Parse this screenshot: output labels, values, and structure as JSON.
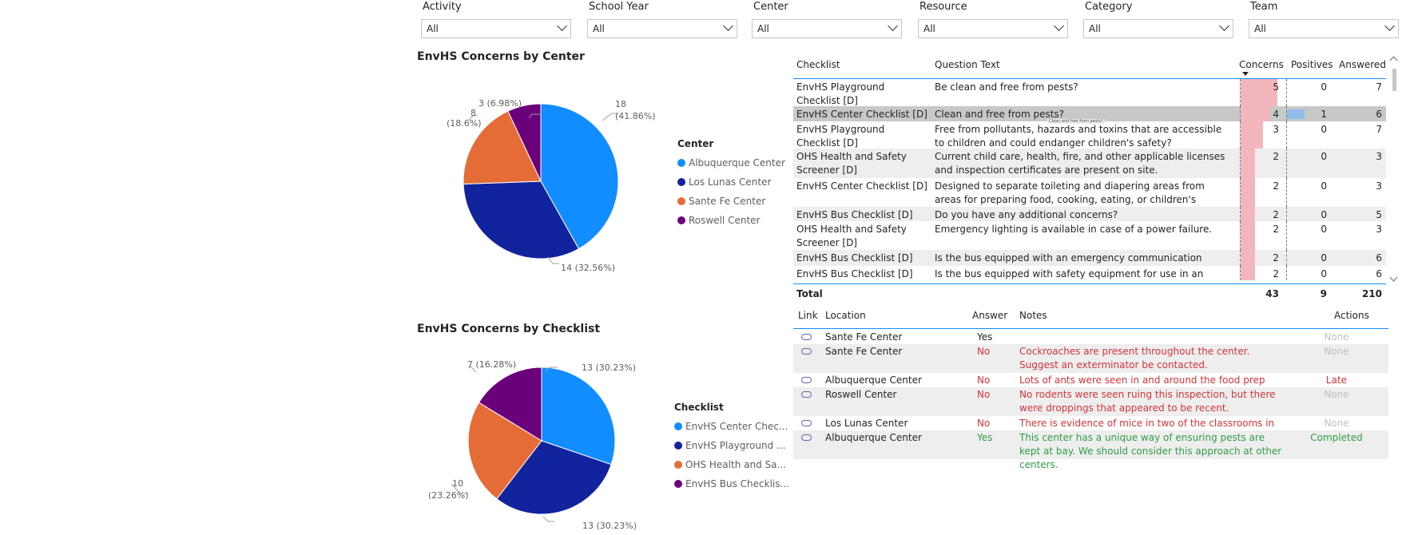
{
  "filters": [
    {
      "label": "Activity",
      "value": "All"
    },
    {
      "label": "School Year",
      "value": "All"
    },
    {
      "label": "Center",
      "value": "All"
    },
    {
      "label": "Resource",
      "value": "All"
    },
    {
      "label": "Category",
      "value": "All"
    },
    {
      "label": "Team",
      "value": "All"
    }
  ],
  "charts": {
    "center": {
      "title": "EnvHS Concerns by Center",
      "legend_title": "Center",
      "legend": [
        "Albuquerque Center",
        "Los Lunas Center",
        "Sante Fe Center",
        "Roswell Center"
      ],
      "labels": [
        "18\n(41.86%)",
        "14 (32.56%)",
        "8\n(18.6%)",
        "3 (6.98%)"
      ]
    },
    "checklist": {
      "title": "EnvHS Concerns by Checklist",
      "legend_title": "Checklist",
      "legend": [
        "EnvHS Center Chec...",
        "EnvHS Playground ...",
        "OHS Health and Sa...",
        "EnvHS Bus Checklis..."
      ],
      "labels": [
        "13 (30.23%)",
        "13 (30.23%)",
        "10\n(23.26%)",
        "7 (16.28%)"
      ]
    }
  },
  "chart_data": [
    {
      "type": "pie",
      "title": "EnvHS Concerns by Center",
      "legend_title": "Center",
      "categories": [
        "Albuquerque Center",
        "Los Lunas Center",
        "Sante Fe Center",
        "Roswell Center"
      ],
      "values": [
        18,
        14,
        8,
        3
      ],
      "percents": [
        41.86,
        32.56,
        18.6,
        6.98
      ],
      "colors": [
        "#118dff",
        "#12239e",
        "#e66c37",
        "#6b007b"
      ],
      "legend_position": "right"
    },
    {
      "type": "pie",
      "title": "EnvHS Concerns by Checklist",
      "legend_title": "Checklist",
      "categories": [
        "EnvHS Center Chec...",
        "EnvHS Playground ...",
        "OHS Health and Sa...",
        "EnvHS Bus Checklis..."
      ],
      "values": [
        13,
        13,
        10,
        7
      ],
      "percents": [
        30.23,
        30.23,
        23.26,
        16.28
      ],
      "colors": [
        "#118dff",
        "#12239e",
        "#e66c37",
        "#6b007b"
      ],
      "legend_position": "right"
    }
  ],
  "main_table": {
    "headers": [
      "Checklist",
      "Question Text",
      "Concerns",
      "Positives",
      "Answered"
    ],
    "rows": [
      {
        "checklist": "EnvHS Playground Checklist [D]",
        "question": "Be clean and free from pests?",
        "concerns": 5,
        "positives": 0,
        "answered": 7
      },
      {
        "checklist": "EnvHS Center Checklist [D]",
        "question": "Clean and free from pests?",
        "concerns": 4,
        "positives": 1,
        "answered": 6
      },
      {
        "checklist": "EnvHS Playground Checklist [D]",
        "question": "Free from pollutants, hazards and toxins that are accessible to children and could endanger children's safety?",
        "concerns": 3,
        "positives": 0,
        "answered": 7
      },
      {
        "checklist": "OHS Health and Safety Screener [D]",
        "question": "Current child care, health, fire, and other applicable licenses and inspection certificates are present on site.",
        "concerns": 2,
        "positives": 0,
        "answered": 3
      },
      {
        "checklist": "EnvHS Center Checklist [D]",
        "question": "Designed to separate toileting and diapering areas from areas for preparing food, cooking, eating, or children's activities?",
        "concerns": 2,
        "positives": 0,
        "answered": 3
      },
      {
        "checklist": "EnvHS Bus Checklist [D]",
        "question": "Do you have any additional concerns?",
        "concerns": 2,
        "positives": 0,
        "answered": 5
      },
      {
        "checklist": "OHS Health and Safety Screener [D]",
        "question": "Emergency lighting is available in case of a power failure.",
        "concerns": 2,
        "positives": 0,
        "answered": 3
      },
      {
        "checklist": "EnvHS Bus Checklist [D]",
        "question": "Is the bus equipped with an emergency communication system?",
        "concerns": 2,
        "positives": 0,
        "answered": 6
      },
      {
        "checklist": "EnvHS Bus Checklist [D]",
        "question": "Is the bus equipped with safety equipment for use in an",
        "concerns": 2,
        "positives": 0,
        "answered": 6
      }
    ],
    "total": {
      "label": "Total",
      "concerns": 43,
      "positives": 9,
      "answered": 210
    },
    "tooltip": "Clean and free from pests?"
  },
  "detail_table": {
    "headers": [
      "Link",
      "Location",
      "Answer",
      "Notes",
      "Actions"
    ],
    "rows": [
      {
        "location": "Sante Fe Center",
        "answer": "Yes",
        "notes": "",
        "action": "None",
        "tone": "plain"
      },
      {
        "location": "Sante Fe Center",
        "answer": "No",
        "notes": "Cockroaches are present throughout the center. Suggest an exterminator be contacted.",
        "action": "None",
        "tone": "red"
      },
      {
        "location": "Albuquerque Center",
        "answer": "No",
        "notes": "Lots of ants were seen in and around the food prep area.",
        "action": "Late",
        "tone": "red"
      },
      {
        "location": "Roswell Center",
        "answer": "No",
        "notes": "No rodents were seen ruing this inspection, but there were droppings that appeared to be recent.",
        "action": "None",
        "tone": "red"
      },
      {
        "location": "Los Lunas Center",
        "answer": "No",
        "notes": "There is evidence of mice in two of the classrooms in this center",
        "action": "None",
        "tone": "red"
      },
      {
        "location": "Albuquerque Center",
        "answer": "Yes",
        "notes": "This center has a unique way of ensuring pests are kept at bay. We should consider this approach at other centers.",
        "action": "Completed",
        "tone": "green"
      }
    ]
  },
  "colors": {
    "concern_bar": "#f4b6bd",
    "positive_bar": "#8ebee8",
    "selected_row": "#c8c8c8",
    "accent_border": "#118dff"
  }
}
